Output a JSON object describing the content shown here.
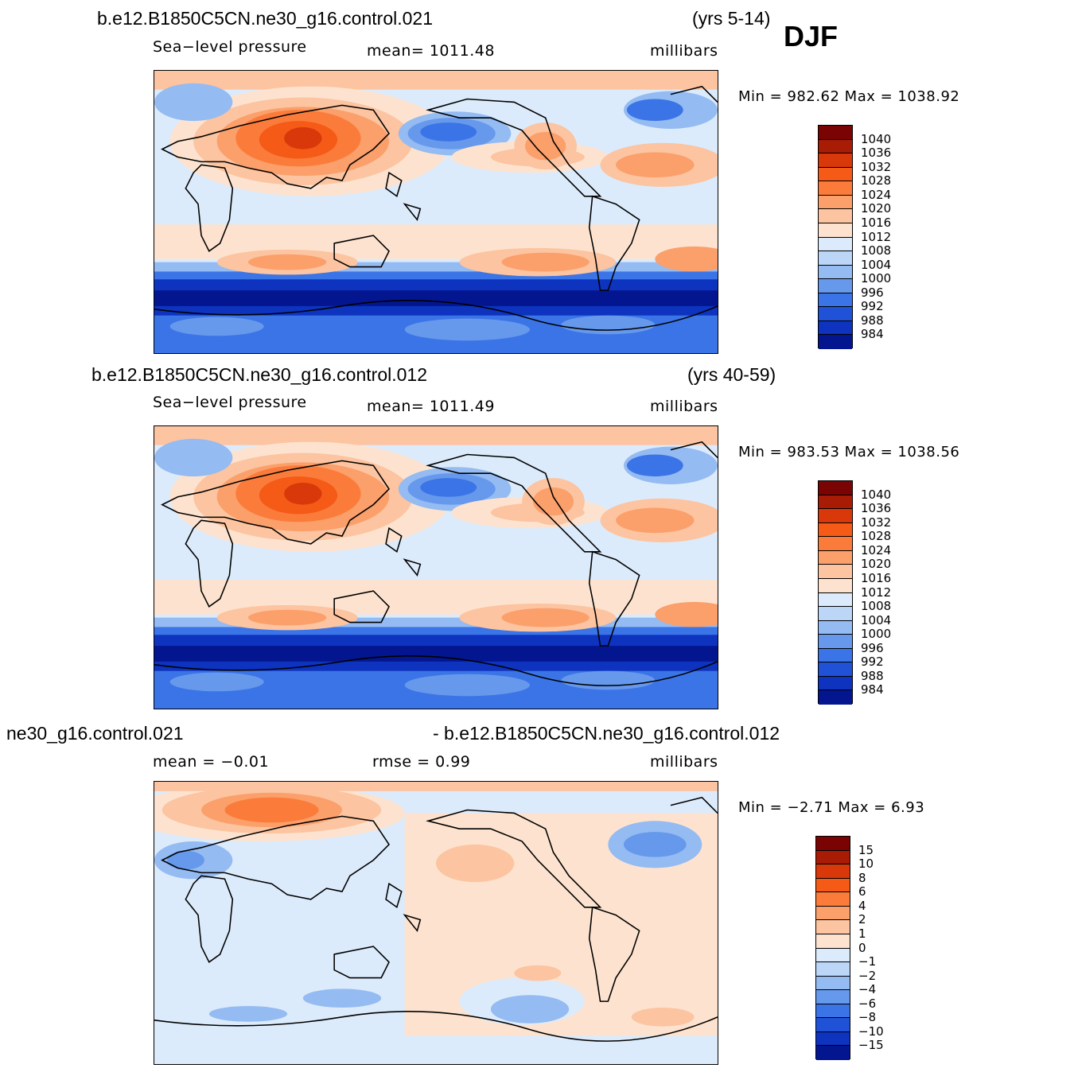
{
  "season": "DJF",
  "panels": [
    {
      "case": "b.e12.B1850C5CN.ne30_g16.control.021",
      "years": "(yrs 5-14)",
      "variable": "Sea−level pressure",
      "mean": "mean=  1011.48",
      "units": "millibars",
      "minmax": "Min  =  982.62  Max  =  1038.92",
      "colorbar_labels": [
        "1040",
        "1036",
        "1032",
        "1028",
        "1024",
        "1020",
        "1016",
        "1012",
        "1008",
        "1004",
        "1000",
        "996",
        "992",
        "988",
        "984"
      ]
    },
    {
      "case": "b.e12.B1850C5CN.ne30_g16.control.012",
      "years": "(yrs 40-59)",
      "variable": "Sea−level pressure",
      "mean": "mean=  1011.49",
      "units": "millibars",
      "minmax": "Min  =  983.53  Max  =  1038.56",
      "colorbar_labels": [
        "1040",
        "1036",
        "1032",
        "1028",
        "1024",
        "1020",
        "1016",
        "1012",
        "1008",
        "1004",
        "1000",
        "996",
        "992",
        "988",
        "984"
      ]
    },
    {
      "case_left": "ne30_g16.control.021",
      "case_right": "- b.e12.B1850C5CN.ne30_g16.control.012",
      "mean": "mean  =    −0.01",
      "rmse": "rmse  =     0.99",
      "units": "millibars",
      "minmax": "Min  =    −2.71  Max  =      6.93",
      "colorbar_labels": [
        "15",
        "10",
        "8",
        "6",
        "4",
        "2",
        "1",
        "0",
        "−1",
        "−2",
        "−4",
        "−6",
        "−8",
        "−10",
        "−15"
      ]
    }
  ],
  "colors": {
    "scale": [
      "#7a0403",
      "#a81b05",
      "#d8380a",
      "#f55a17",
      "#fb7c3a",
      "#fb9f6b",
      "#fcc4a0",
      "#fde3cf",
      "#dcebfb",
      "#bcd6f7",
      "#94bbf2",
      "#6698ec",
      "#3b74e6",
      "#1f52d7",
      "#0d33bf",
      "#04168f"
    ],
    "land_outline": "#000000"
  }
}
